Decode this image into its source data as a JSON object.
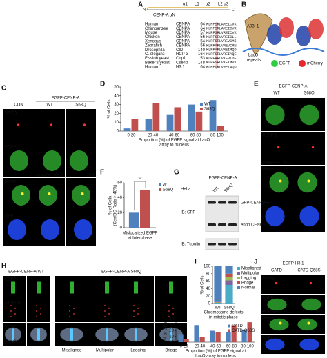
{
  "panel_labels": [
    "A",
    "B",
    "C",
    "D",
    "E",
    "F",
    "G",
    "H",
    "I",
    "J",
    "K"
  ],
  "panel_a": {
    "domains": [
      "N",
      "CENP-A αN",
      "α1",
      "L1",
      "α2",
      "L2 α3",
      "C"
    ],
    "alignment": [
      [
        "Human",
        "CENPA",
        64,
        "KLPFSRLAREICVK"
      ],
      [
        "Chimpanzee",
        "CENPA",
        64,
        "KLPFSRLAREICVK"
      ],
      [
        "Mouse",
        "CENPA",
        57,
        "KLPFSRLVREICVK"
      ],
      [
        "Chicken",
        "CENPA",
        56,
        "KLPFSRVVREICLL"
      ],
      [
        "Xenopus",
        "CENPA",
        54,
        "KLPFSRLVREVCMI"
      ],
      [
        "Zebrafish",
        "CENPA",
        56,
        "KLPFARLVREVCMN"
      ],
      [
        "Drosophila",
        "CID",
        140,
        "KLPFARLVREIMQD"
      ],
      [
        "C. elegans",
        "HCP-3",
        164,
        "KLPFSRLVREIAQE"
      ],
      [
        "Fission yeast",
        "Cnp1",
        53,
        "KLPFARLVKEVTDE"
      ],
      [
        "Baker's yeast",
        "Cse4p",
        148,
        "KLPFSRLVKEIMVK"
      ],
      [
        "Human",
        "H3.1",
        64,
        "KLPFQRLVREIAQD"
      ]
    ]
  },
  "panel_b": {
    "labels": [
      "A03_1",
      "LacO",
      "repeats",
      "EGFP",
      "mCherry"
    ]
  },
  "panel_c": {
    "header": "EGFP-CENP-A",
    "columns": [
      "CON",
      "WT",
      "S68Q"
    ],
    "rows": [
      "Cherry",
      "EGFP",
      "Merge",
      "DAPI"
    ],
    "metric": "Array/BG %",
    "metric_values": [
      92.9,
      25.6
    ]
  },
  "panel_e": {
    "header": "EGFP-CENP-A",
    "columns": [
      "WT",
      "S68Q"
    ],
    "rows": [
      "EGFP",
      "CENP-B",
      "Merge",
      "DAPI"
    ],
    "metric": "Cen/BG%",
    "metric_values": [
      97.1,
      11.4
    ]
  },
  "panel_g": {
    "header": "EGFP-CENP-A",
    "cell_line": "HeLa",
    "lanes": [
      "WT",
      "S68Q"
    ],
    "blots": [
      "IB: GFP",
      "IB: Tubulin"
    ],
    "bands": [
      "GFP-CENP-A",
      "endo CENP-A"
    ]
  },
  "panel_h": {
    "headers": [
      "EGFP-CENP-A WT",
      "EGFP-CENP-A S68Q"
    ],
    "rows": [
      "EGFP",
      "CENP-B",
      "Merge",
      "Tubulin"
    ],
    "phenotypes": [
      "Misaligned",
      "Multipolar",
      "Lagging",
      "Bridge"
    ]
  },
  "panel_j": {
    "header": "EGFP-H3.1",
    "columns": [
      "CATD",
      "CATD-Q68S"
    ],
    "rows": [
      "Cherry",
      "EGFP",
      "Merge",
      "DAPI"
    ],
    "metric": "Array/BG%",
    "metric_values": [
      37.1,
      96.5
    ]
  },
  "chart_data": [
    {
      "type": "bar",
      "y_label": "% of Cells",
      "x_label": "Proportion (%) of EGFP signal at LacO",
      "x_label_2": "array to nucleus",
      "categories": [
        "0-20",
        "20-40",
        "40-60",
        "60-80",
        "80-100"
      ],
      "series": [
        {
          "name": "WT",
          "color": "#4f81bd",
          "values": [
            3,
            14,
            19,
            30,
            35
          ]
        },
        {
          "name": "S68Q",
          "color": "#c0504d",
          "values": [
            14,
            32,
            27,
            22,
            6
          ]
        }
      ],
      "ylim": [
        0,
        50
      ],
      "yticks": [
        0,
        10,
        20,
        30,
        40,
        50
      ],
      "legend": "center right"
    },
    {
      "type": "bar",
      "y_label": "% of Cells",
      "y_label_2": "(Cen/BG Ratio > 40%)",
      "x_label": "Mislocalized EGFP",
      "x_label_2": "at Interphase",
      "categories": [
        null
      ],
      "series": [
        {
          "name": "WT",
          "color": "#4f81bd",
          "values": [
            20
          ]
        },
        {
          "name": "S68Q",
          "color": "#c0504d",
          "values": [
            50
          ]
        }
      ],
      "ylim": [
        0,
        60
      ],
      "yticks": [
        0,
        20,
        40,
        60
      ],
      "legend": "right",
      "annotation": "**"
    },
    {
      "type": "stacked_bar",
      "y_label": "% of Cells",
      "x_label": "Chromosome defects",
      "x_label_2": "in mitotic phase",
      "categories": [
        "WT",
        "S68Q"
      ],
      "series": [
        {
          "name": "Misaligned",
          "color": "#4bacc6",
          "values": [
            2,
            50
          ]
        },
        {
          "name": "Multipolar",
          "color": "#8064a2",
          "values": [
            0,
            12
          ]
        },
        {
          "name": "Lagging",
          "color": "#9bbb59",
          "values": [
            1,
            10
          ]
        },
        {
          "name": "Bridge",
          "color": "#c0504d",
          "values": [
            1,
            8
          ]
        },
        {
          "name": "Normal",
          "color": "#4f81bd",
          "values": [
            96,
            20
          ]
        }
      ],
      "ylim": [
        0,
        100
      ],
      "yticks": [
        0,
        20,
        40,
        60,
        80,
        100
      ],
      "legend": "right"
    },
    {
      "type": "bar",
      "y_label": "% of Cells",
      "x_label": "Proportion (%) of EGFP signal at",
      "x_label_2": "LacO array to nucleus",
      "categories": [
        "0-20",
        "20-40",
        "40-60",
        "60-80",
        "80-100"
      ],
      "series": [
        {
          "name": "CATD",
          "color": "#4f81bd",
          "values": [
            14,
            30,
            20,
            18,
            22
          ]
        },
        {
          "name": "CATD-Q68S",
          "color": "#c0504d",
          "values": [
            5,
            9,
            18,
            30,
            35
          ]
        }
      ],
      "ylim": [
        0,
        40
      ],
      "yticks": [
        0,
        10,
        20,
        30,
        40
      ],
      "legend": "center right"
    }
  ]
}
